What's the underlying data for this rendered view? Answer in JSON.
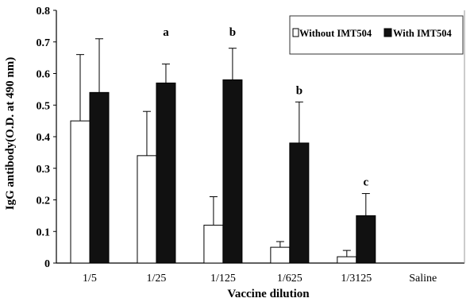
{
  "chart_data": {
    "type": "bar",
    "title": "",
    "xlabel": "Vaccine dilution",
    "ylabel": "IgG antibody(O.D. at 490 nm)",
    "ylim": [
      0,
      0.8
    ],
    "yticks": [
      "0",
      "0.1",
      "0.2",
      "0.3",
      "0.4",
      "0.5",
      "0.6",
      "0.7",
      "0.8"
    ],
    "categories": [
      "1/5",
      "1/25",
      "1/125",
      "1/625",
      "1/3125",
      "Saline"
    ],
    "series": [
      {
        "name": "Without IMT504",
        "color": "#ffffff",
        "values": [
          0.45,
          0.34,
          0.12,
          0.05,
          0.02,
          0
        ],
        "errors": [
          0.21,
          0.14,
          0.09,
          0.018,
          0.02,
          0
        ]
      },
      {
        "name": "With IMT504",
        "color": "#111111",
        "values": [
          0.54,
          0.57,
          0.58,
          0.38,
          0.15,
          0
        ],
        "errors": [
          0.17,
          0.06,
          0.1,
          0.13,
          0.07,
          0
        ]
      }
    ],
    "annotations": [
      {
        "category": "1/25",
        "text": "a"
      },
      {
        "category": "1/125",
        "text": "b"
      },
      {
        "category": "1/625",
        "text": "b"
      },
      {
        "category": "1/3125",
        "text": "c"
      }
    ],
    "legend_position": "top-right",
    "grid": false
  }
}
